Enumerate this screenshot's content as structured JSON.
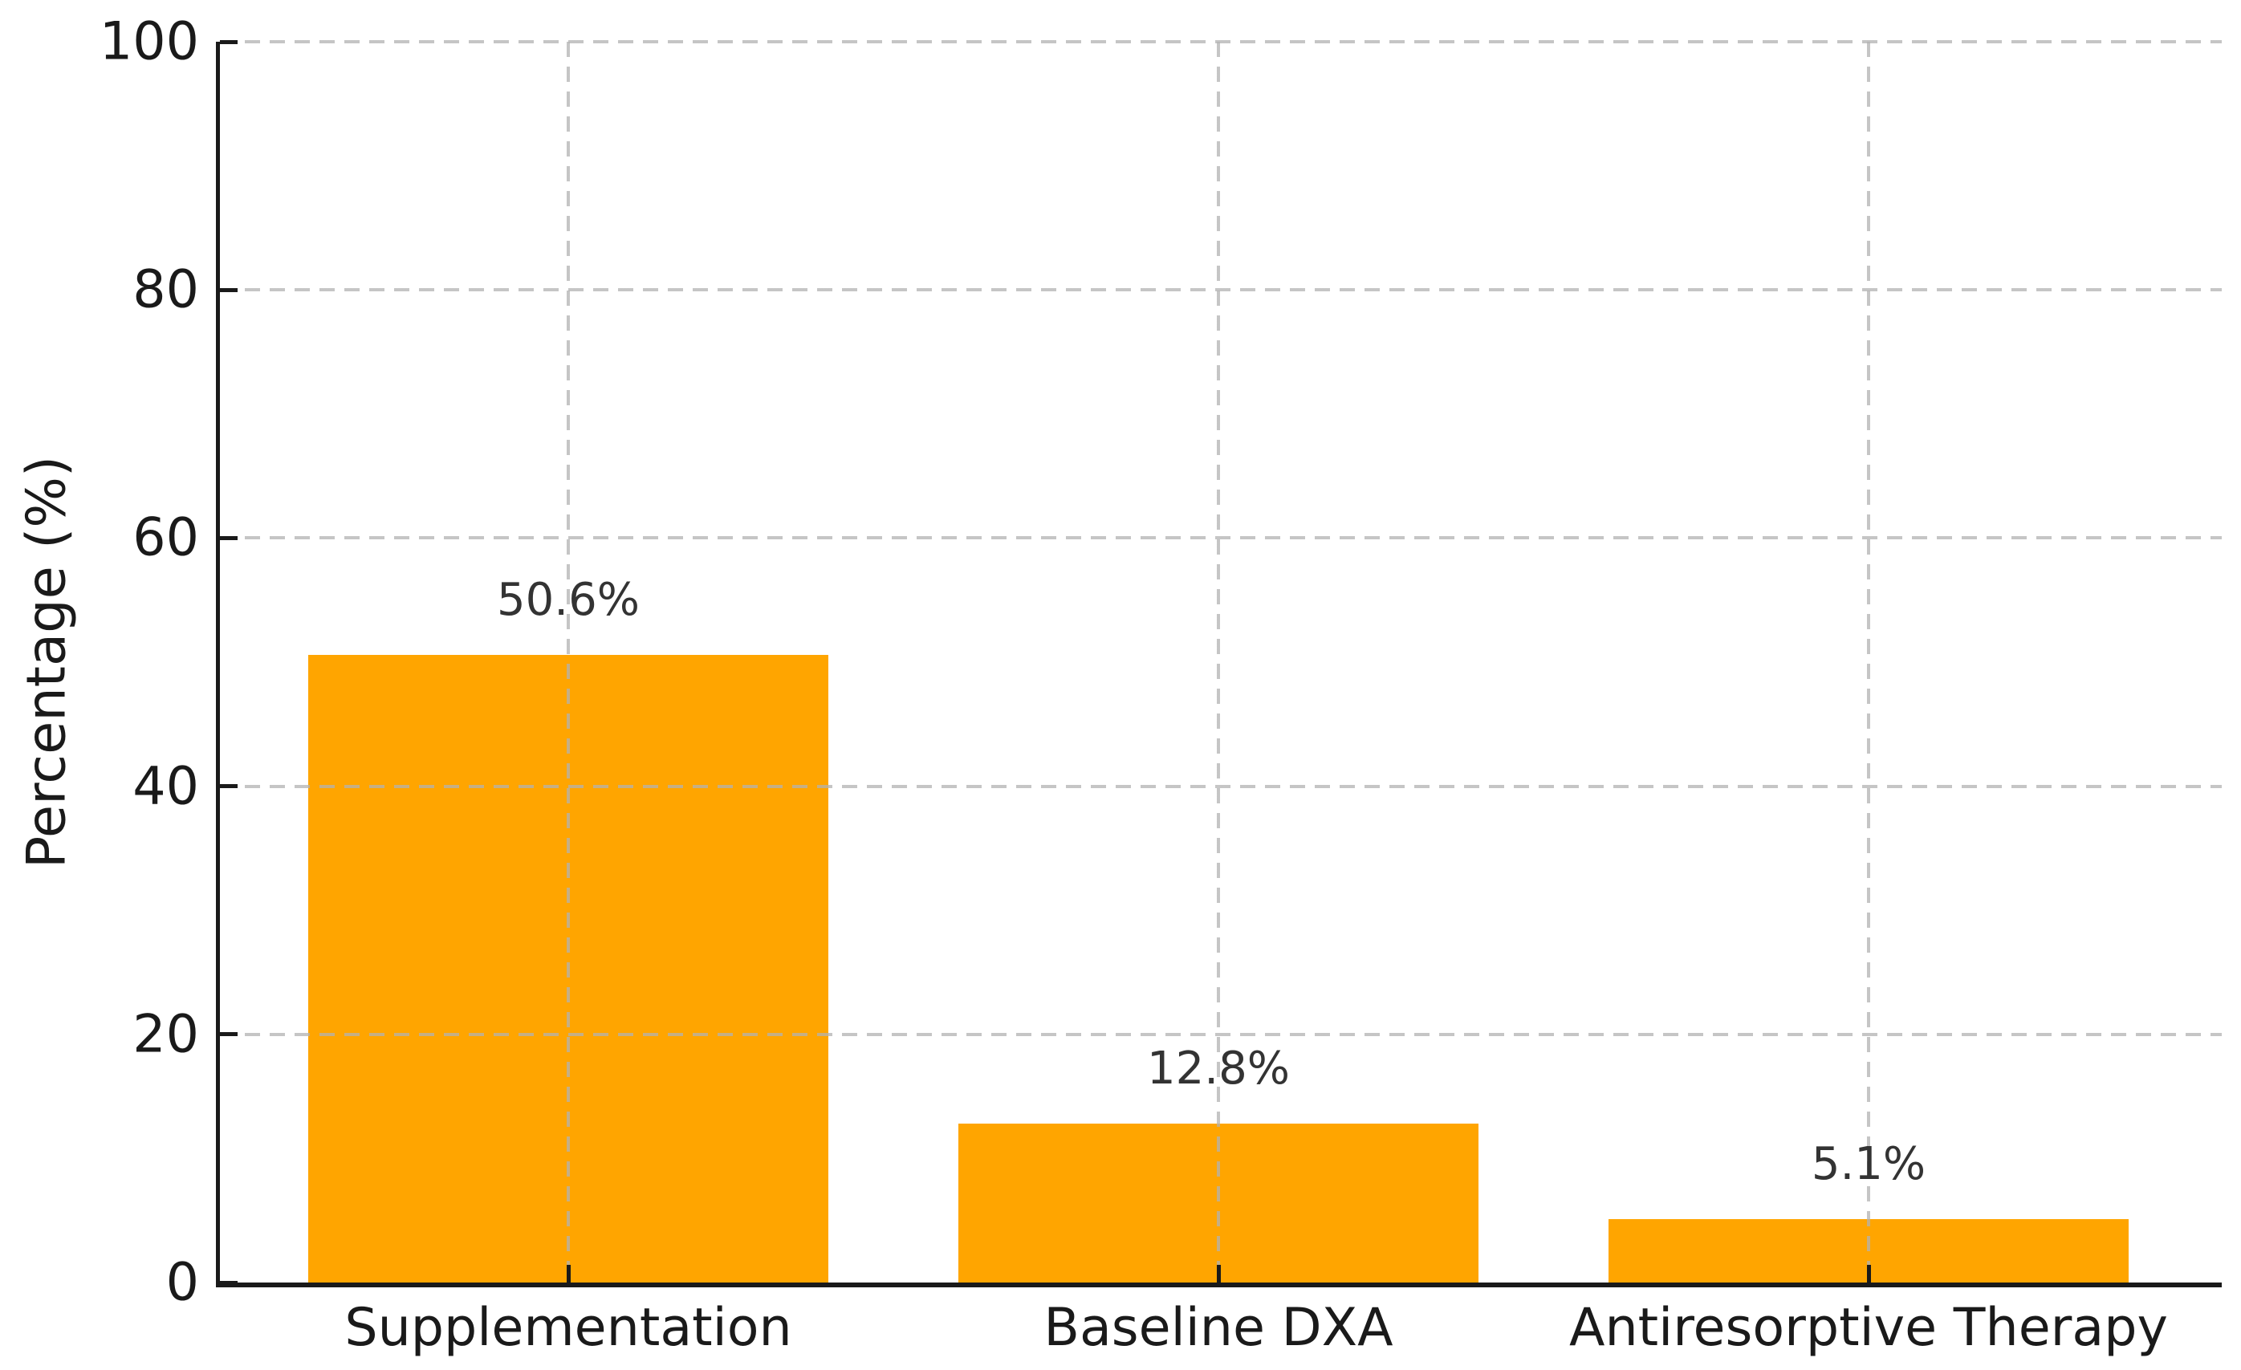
{
  "chart_data": {
    "type": "bar",
    "title": "",
    "xlabel": "",
    "ylabel": "Percentage (%)",
    "categories": [
      "Supplementation",
      "Baseline DXA",
      "Antiresorptive Therapy"
    ],
    "values": [
      50.6,
      12.8,
      5.1
    ],
    "value_labels": [
      "50.6%",
      "12.8%",
      "5.1%"
    ],
    "ylim": [
      0,
      100
    ],
    "yticks": [
      0,
      20,
      40,
      60,
      80,
      100
    ],
    "ytick_labels": [
      "0",
      "20",
      "40",
      "60",
      "80",
      "100"
    ],
    "grid": "dashed horizontal and vertical, drawn above bars",
    "legend": "none",
    "bar_color": "#FFA500",
    "axis_color": "#1a1a1a",
    "grid_color": "#b2b2b2",
    "value_label_color": "#333333"
  }
}
